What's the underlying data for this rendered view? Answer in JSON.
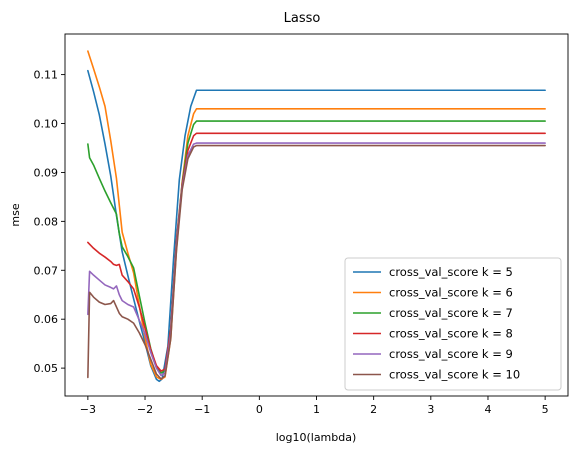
{
  "chart_data": {
    "type": "line",
    "title": "Lasso",
    "xlabel": "log10(lambda)",
    "ylabel": "mse",
    "xlim": [
      -3.4,
      5.4
    ],
    "ylim": [
      0.0443,
      0.1183
    ],
    "xticks": [
      -3,
      -2,
      -1,
      0,
      1,
      2,
      3,
      4,
      5
    ],
    "yticks": [
      0.05,
      0.06,
      0.07,
      0.08,
      0.09,
      0.1,
      0.11
    ],
    "legend_position": "lower-right",
    "grid": false,
    "series": [
      {
        "name": "cross_val_score k = 5",
        "color": "#1f77b4",
        "points": [
          [
            -3.0,
            0.1108
          ],
          [
            -2.9,
            0.1065
          ],
          [
            -2.8,
            0.1018
          ],
          [
            -2.7,
            0.0958
          ],
          [
            -2.6,
            0.0893
          ],
          [
            -2.5,
            0.0812
          ],
          [
            -2.4,
            0.0738
          ],
          [
            -2.3,
            0.0689
          ],
          [
            -2.2,
            0.0642
          ],
          [
            -2.1,
            0.0596
          ],
          [
            -2.0,
            0.0552
          ],
          [
            -1.9,
            0.0505
          ],
          [
            -1.8,
            0.0477
          ],
          [
            -1.75,
            0.0473
          ],
          [
            -1.7,
            0.0478
          ],
          [
            -1.6,
            0.0545
          ],
          [
            -1.5,
            0.0725
          ],
          [
            -1.4,
            0.0885
          ],
          [
            -1.3,
            0.0975
          ],
          [
            -1.2,
            0.1035
          ],
          [
            -1.1,
            0.1068
          ],
          [
            0.0,
            0.1068
          ],
          [
            5.0,
            0.1068
          ]
        ]
      },
      {
        "name": "cross_val_score k = 6",
        "color": "#ff7f0e",
        "points": [
          [
            -3.0,
            0.1148
          ],
          [
            -2.9,
            0.1112
          ],
          [
            -2.8,
            0.1075
          ],
          [
            -2.7,
            0.1035
          ],
          [
            -2.6,
            0.0965
          ],
          [
            -2.5,
            0.0888
          ],
          [
            -2.4,
            0.0778
          ],
          [
            -2.3,
            0.0735
          ],
          [
            -2.2,
            0.0695
          ],
          [
            -2.1,
            0.0628
          ],
          [
            -2.0,
            0.0562
          ],
          [
            -1.9,
            0.0508
          ],
          [
            -1.8,
            0.0482
          ],
          [
            -1.72,
            0.0477
          ],
          [
            -1.65,
            0.0482
          ],
          [
            -1.55,
            0.056
          ],
          [
            -1.45,
            0.0742
          ],
          [
            -1.35,
            0.088
          ],
          [
            -1.25,
            0.0975
          ],
          [
            -1.15,
            0.102
          ],
          [
            -1.1,
            0.103
          ],
          [
            0.0,
            0.103
          ],
          [
            5.0,
            0.103
          ]
        ]
      },
      {
        "name": "cross_val_score k = 7",
        "color": "#2ca02c",
        "points": [
          [
            -3.0,
            0.0958
          ],
          [
            -2.97,
            0.093
          ],
          [
            -2.9,
            0.0915
          ],
          [
            -2.8,
            0.0888
          ],
          [
            -2.7,
            0.0862
          ],
          [
            -2.6,
            0.0838
          ],
          [
            -2.5,
            0.0815
          ],
          [
            -2.45,
            0.0775
          ],
          [
            -2.4,
            0.0748
          ],
          [
            -2.3,
            0.0728
          ],
          [
            -2.2,
            0.0705
          ],
          [
            -2.1,
            0.0648
          ],
          [
            -2.0,
            0.0592
          ],
          [
            -1.9,
            0.054
          ],
          [
            -1.8,
            0.0502
          ],
          [
            -1.72,
            0.049
          ],
          [
            -1.65,
            0.0495
          ],
          [
            -1.55,
            0.058
          ],
          [
            -1.45,
            0.0762
          ],
          [
            -1.35,
            0.0878
          ],
          [
            -1.25,
            0.096
          ],
          [
            -1.15,
            0.0998
          ],
          [
            -1.1,
            0.1005
          ],
          [
            0.0,
            0.1005
          ],
          [
            5.0,
            0.1005
          ]
        ]
      },
      {
        "name": "cross_val_score k = 8",
        "color": "#d62728",
        "points": [
          [
            -3.0,
            0.0757
          ],
          [
            -2.9,
            0.0745
          ],
          [
            -2.8,
            0.0735
          ],
          [
            -2.7,
            0.0727
          ],
          [
            -2.6,
            0.0718
          ],
          [
            -2.55,
            0.0712
          ],
          [
            -2.5,
            0.071
          ],
          [
            -2.45,
            0.0712
          ],
          [
            -2.4,
            0.069
          ],
          [
            -2.3,
            0.0677
          ],
          [
            -2.2,
            0.0662
          ],
          [
            -2.1,
            0.0625
          ],
          [
            -2.0,
            0.0582
          ],
          [
            -1.9,
            0.0538
          ],
          [
            -1.8,
            0.0505
          ],
          [
            -1.72,
            0.0494
          ],
          [
            -1.65,
            0.0498
          ],
          [
            -1.55,
            0.058
          ],
          [
            -1.45,
            0.076
          ],
          [
            -1.35,
            0.0875
          ],
          [
            -1.25,
            0.0945
          ],
          [
            -1.15,
            0.0975
          ],
          [
            -1.1,
            0.098
          ],
          [
            0.0,
            0.098
          ],
          [
            5.0,
            0.098
          ]
        ]
      },
      {
        "name": "cross_val_score k = 9",
        "color": "#9467bd",
        "points": [
          [
            -3.0,
            0.061
          ],
          [
            -2.97,
            0.0698
          ],
          [
            -2.9,
            0.069
          ],
          [
            -2.8,
            0.068
          ],
          [
            -2.7,
            0.067
          ],
          [
            -2.6,
            0.0665
          ],
          [
            -2.55,
            0.0662
          ],
          [
            -2.5,
            0.0668
          ],
          [
            -2.45,
            0.065
          ],
          [
            -2.4,
            0.0638
          ],
          [
            -2.3,
            0.063
          ],
          [
            -2.2,
            0.0625
          ],
          [
            -2.1,
            0.0598
          ],
          [
            -2.0,
            0.057
          ],
          [
            -1.9,
            0.0532
          ],
          [
            -1.8,
            0.05
          ],
          [
            -1.72,
            0.0485
          ],
          [
            -1.65,
            0.049
          ],
          [
            -1.55,
            0.057
          ],
          [
            -1.45,
            0.075
          ],
          [
            -1.35,
            0.087
          ],
          [
            -1.25,
            0.0935
          ],
          [
            -1.15,
            0.0958
          ],
          [
            -1.1,
            0.096
          ],
          [
            0.0,
            0.096
          ],
          [
            5.0,
            0.096
          ]
        ]
      },
      {
        "name": "cross_val_score k = 10",
        "color": "#8c564b",
        "points": [
          [
            -3.0,
            0.0481
          ],
          [
            -2.97,
            0.0655
          ],
          [
            -2.9,
            0.0645
          ],
          [
            -2.8,
            0.0635
          ],
          [
            -2.7,
            0.063
          ],
          [
            -2.6,
            0.0632
          ],
          [
            -2.55,
            0.0638
          ],
          [
            -2.5,
            0.0625
          ],
          [
            -2.45,
            0.0612
          ],
          [
            -2.4,
            0.0605
          ],
          [
            -2.3,
            0.06
          ],
          [
            -2.2,
            0.0592
          ],
          [
            -2.1,
            0.0572
          ],
          [
            -2.0,
            0.0548
          ],
          [
            -1.9,
            0.0518
          ],
          [
            -1.8,
            0.0488
          ],
          [
            -1.72,
            0.0478
          ],
          [
            -1.65,
            0.0484
          ],
          [
            -1.55,
            0.056
          ],
          [
            -1.45,
            0.074
          ],
          [
            -1.35,
            0.0865
          ],
          [
            -1.25,
            0.0928
          ],
          [
            -1.15,
            0.0952
          ],
          [
            -1.1,
            0.0955
          ],
          [
            0.0,
            0.0955
          ],
          [
            5.0,
            0.0955
          ]
        ]
      }
    ]
  }
}
